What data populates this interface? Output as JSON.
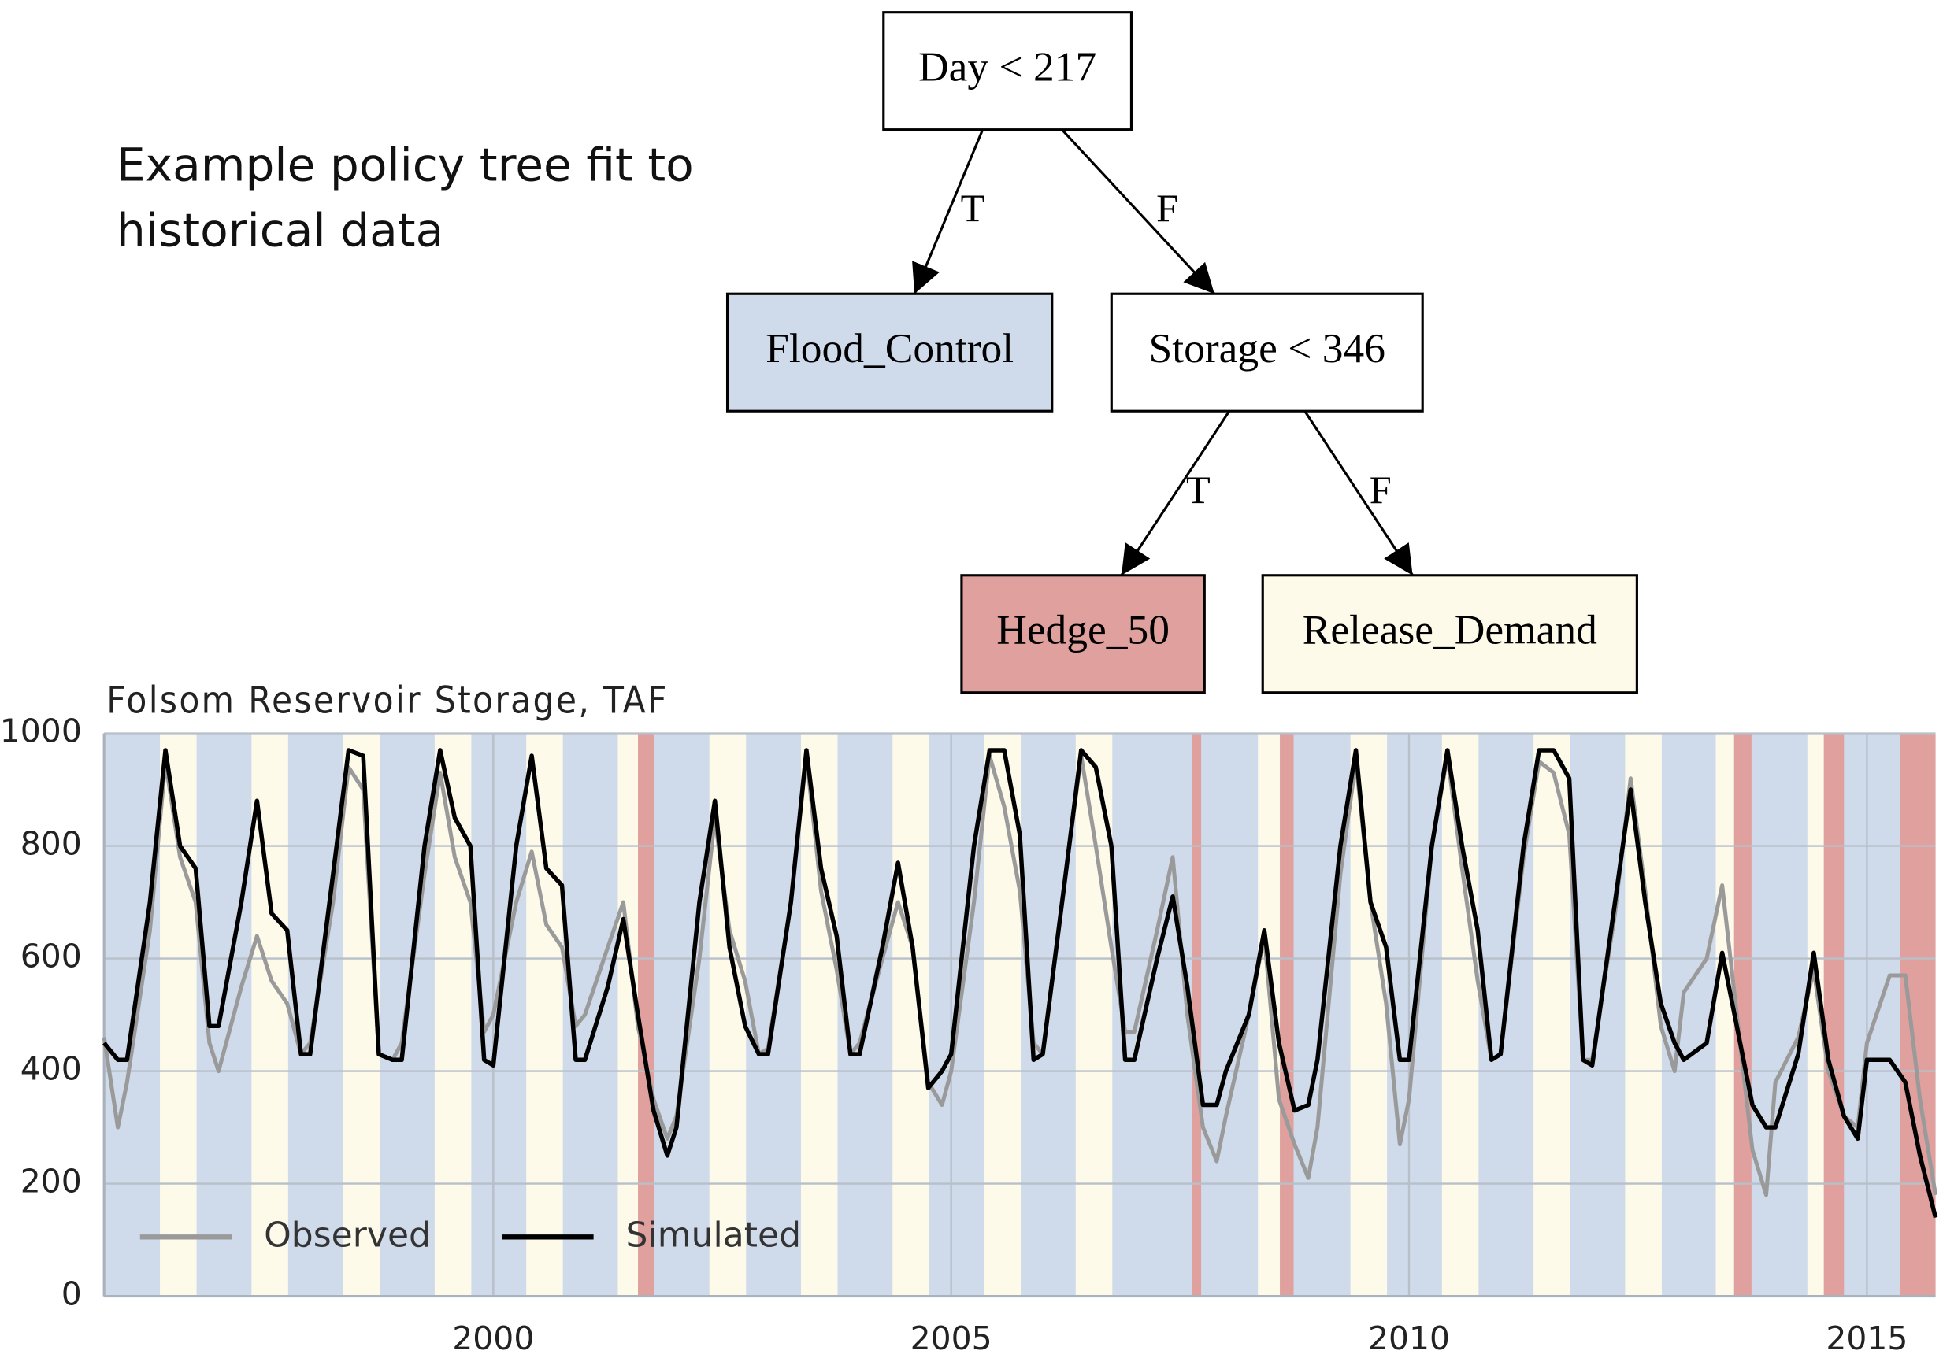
{
  "annotation": [
    "Example policy tree fit to",
    "historical data"
  ],
  "tree": {
    "nodes": [
      {
        "label": "Day < 217",
        "color": "#ffffff"
      },
      {
        "label": "Flood_Control",
        "color": "#cfdbea"
      },
      {
        "label": "Storage < 346",
        "color": "#ffffff"
      },
      {
        "label": "Hedge_50",
        "color": "#e0a09e"
      },
      {
        "label": "Release_Demand",
        "color": "#fdfaea"
      }
    ],
    "edges": [
      {
        "from": 0,
        "to": 1,
        "label": "T"
      },
      {
        "from": 0,
        "to": 2,
        "label": "F"
      },
      {
        "from": 2,
        "to": 3,
        "label": "T"
      },
      {
        "from": 2,
        "to": 4,
        "label": "F"
      }
    ]
  },
  "chart_data": {
    "type": "line",
    "title": "Folsom Reservoir Storage, TAF",
    "x": [
      1995.75,
      1995.9,
      1996.0,
      1996.25,
      1996.42,
      1996.58,
      1996.75,
      1996.9,
      1997.0,
      1997.25,
      1997.42,
      1997.58,
      1997.75,
      1997.9,
      1998.0,
      1998.25,
      1998.42,
      1998.58,
      1998.75,
      1998.9,
      1999.0,
      1999.25,
      1999.42,
      1999.58,
      1999.75,
      1999.9,
      2000.0,
      2000.25,
      2000.42,
      2000.58,
      2000.75,
      2000.9,
      2001.0,
      2001.25,
      2001.42,
      2001.58,
      2001.75,
      2001.9,
      2002.0,
      2002.25,
      2002.42,
      2002.58,
      2002.75,
      2002.9,
      2003.0,
      2003.25,
      2003.42,
      2003.58,
      2003.75,
      2003.9,
      2004.0,
      2004.25,
      2004.42,
      2004.58,
      2004.75,
      2004.9,
      2005.0,
      2005.25,
      2005.42,
      2005.58,
      2005.75,
      2005.9,
      2006.0,
      2006.25,
      2006.42,
      2006.58,
      2006.75,
      2006.9,
      2007.0,
      2007.25,
      2007.42,
      2007.58,
      2007.75,
      2007.9,
      2008.0,
      2008.25,
      2008.42,
      2008.58,
      2008.75,
      2008.9,
      2009.0,
      2009.25,
      2009.42,
      2009.58,
      2009.75,
      2009.9,
      2010.0,
      2010.25,
      2010.42,
      2010.58,
      2010.75,
      2010.9,
      2011.0,
      2011.25,
      2011.42,
      2011.58,
      2011.75,
      2011.9,
      2012.0,
      2012.25,
      2012.42,
      2012.58,
      2012.75,
      2012.9,
      2013.0,
      2013.25,
      2013.42,
      2013.58,
      2013.75,
      2013.9,
      2014.0,
      2014.25,
      2014.42,
      2014.58,
      2014.75,
      2014.9,
      2015.0,
      2015.25,
      2015.42,
      2015.58,
      2015.75
    ],
    "series": [
      {
        "name": "Observed",
        "color": "#9a9a9a",
        "values": [
          460,
          300,
          380,
          650,
          950,
          780,
          700,
          450,
          400,
          550,
          640,
          560,
          520,
          430,
          450,
          700,
          940,
          900,
          430,
          420,
          450,
          750,
          930,
          780,
          700,
          470,
          500,
          700,
          790,
          660,
          620,
          480,
          500,
          620,
          700,
          480,
          350,
          280,
          320,
          600,
          850,
          650,
          560,
          430,
          440,
          700,
          960,
          720,
          580,
          430,
          450,
          600,
          700,
          620,
          380,
          340,
          400,
          700,
          960,
          870,
          720,
          450,
          430,
          750,
          960,
          800,
          620,
          470,
          470,
          650,
          780,
          500,
          300,
          240,
          320,
          500,
          640,
          350,
          270,
          210,
          300,
          750,
          950,
          700,
          520,
          270,
          350,
          800,
          960,
          760,
          560,
          420,
          430,
          780,
          950,
          930,
          820,
          420,
          420,
          680,
          920,
          720,
          480,
          400,
          540,
          600,
          730,
          500,
          260,
          180,
          380,
          460,
          580,
          400,
          320,
          300,
          450,
          570,
          570,
          350,
          180
        ]
      },
      {
        "name": "Simulated",
        "color": "#000000",
        "values": [
          450,
          420,
          420,
          700,
          970,
          800,
          760,
          480,
          480,
          700,
          880,
          680,
          650,
          430,
          430,
          750,
          970,
          960,
          430,
          420,
          420,
          800,
          970,
          850,
          800,
          420,
          410,
          800,
          960,
          760,
          730,
          420,
          420,
          550,
          670,
          500,
          330,
          250,
          300,
          700,
          880,
          620,
          480,
          430,
          430,
          700,
          970,
          760,
          640,
          430,
          430,
          620,
          770,
          620,
          370,
          400,
          430,
          800,
          970,
          970,
          820,
          420,
          430,
          750,
          970,
          940,
          800,
          420,
          420,
          600,
          710,
          550,
          340,
          340,
          400,
          500,
          650,
          450,
          330,
          340,
          420,
          800,
          970,
          700,
          620,
          420,
          420,
          800,
          970,
          800,
          650,
          420,
          430,
          800,
          970,
          970,
          920,
          420,
          410,
          700,
          900,
          700,
          520,
          450,
          420,
          450,
          610,
          480,
          340,
          300,
          300,
          430,
          610,
          420,
          320,
          280,
          420,
          420,
          380,
          250,
          140
        ]
      }
    ],
    "background": "#cfdbea",
    "bands": [
      {
        "x0": 1996.36,
        "x1": 1996.76,
        "color": "#fdfaea"
      },
      {
        "x0": 1997.36,
        "x1": 1997.76,
        "color": "#fdfaea"
      },
      {
        "x0": 1998.36,
        "x1": 1998.76,
        "color": "#fdfaea"
      },
      {
        "x0": 1999.36,
        "x1": 1999.76,
        "color": "#fdfaea"
      },
      {
        "x0": 2000.36,
        "x1": 2000.76,
        "color": "#fdfaea"
      },
      {
        "x0": 2001.36,
        "x1": 2001.58,
        "color": "#fdfaea"
      },
      {
        "x0": 2001.58,
        "x1": 2001.76,
        "color": "#e0a09e"
      },
      {
        "x0": 2002.36,
        "x1": 2002.76,
        "color": "#fdfaea"
      },
      {
        "x0": 2003.36,
        "x1": 2003.76,
        "color": "#fdfaea"
      },
      {
        "x0": 2004.36,
        "x1": 2004.76,
        "color": "#fdfaea"
      },
      {
        "x0": 2005.36,
        "x1": 2005.76,
        "color": "#fdfaea"
      },
      {
        "x0": 2006.36,
        "x1": 2006.76,
        "color": "#fdfaea"
      },
      {
        "x0": 2007.63,
        "x1": 2007.73,
        "color": "#e0a09e"
      },
      {
        "x0": 2008.35,
        "x1": 2008.59,
        "color": "#fdfaea"
      },
      {
        "x0": 2008.59,
        "x1": 2008.74,
        "color": "#e0a09e"
      },
      {
        "x0": 2009.36,
        "x1": 2009.76,
        "color": "#fdfaea"
      },
      {
        "x0": 2010.36,
        "x1": 2010.76,
        "color": "#fdfaea"
      },
      {
        "x0": 2011.36,
        "x1": 2011.76,
        "color": "#fdfaea"
      },
      {
        "x0": 2012.36,
        "x1": 2012.76,
        "color": "#fdfaea"
      },
      {
        "x0": 2013.35,
        "x1": 2013.55,
        "color": "#fdfaea"
      },
      {
        "x0": 2013.55,
        "x1": 2013.74,
        "color": "#e0a09e"
      },
      {
        "x0": 2014.35,
        "x1": 2014.53,
        "color": "#fdfaea"
      },
      {
        "x0": 2014.53,
        "x1": 2014.75,
        "color": "#e0a09e"
      },
      {
        "x0": 2015.36,
        "x1": 2015.75,
        "color": "#e0a09e"
      }
    ],
    "xlim": [
      1995.75,
      2015.75
    ],
    "xticks": [
      2000,
      2005,
      2010,
      2015
    ],
    "ylim": [
      0,
      1000
    ],
    "yticks": [
      0,
      200,
      400,
      600,
      800,
      1000
    ],
    "grid": true,
    "legend": "lower left"
  }
}
